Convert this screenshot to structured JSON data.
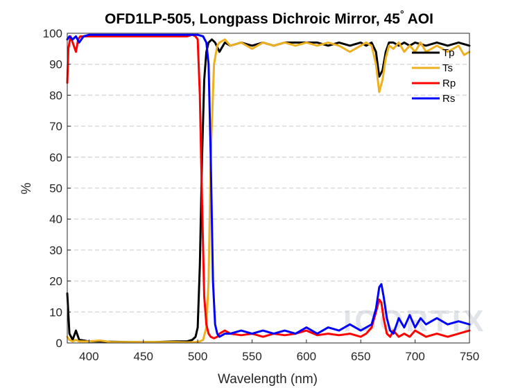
{
  "chart_data": {
    "type": "line",
    "title": "OFD1LP-505, Longpass Dichroic Mirror, 45",
    "title_superscript": "°",
    "title_suffix": " AOI",
    "xlabel": "Wavelength (nm)",
    "ylabel": "%",
    "xlim": [
      380,
      750
    ],
    "ylim": [
      0,
      100
    ],
    "xticks": [
      400,
      450,
      500,
      550,
      600,
      650,
      700,
      750
    ],
    "yticks": [
      0,
      10,
      20,
      30,
      40,
      50,
      60,
      70,
      80,
      90,
      100
    ],
    "grid": "horizontal dashed",
    "legend_position": "top-right",
    "watermark": "ICORTIX",
    "series": [
      {
        "name": "Tp",
        "color": "#000000",
        "x": [
          380,
          382,
          385,
          388,
          391,
          395,
          400,
          410,
          420,
          440,
          460,
          480,
          490,
          495,
          498,
          500,
          502,
          504,
          506,
          508,
          510,
          513,
          516,
          520,
          525,
          530,
          540,
          550,
          560,
          570,
          580,
          590,
          600,
          610,
          620,
          630,
          640,
          650,
          655,
          660,
          664,
          667,
          670,
          673,
          676,
          680,
          685,
          690,
          695,
          700,
          710,
          720,
          730,
          740,
          750
        ],
        "y": [
          16,
          3,
          1,
          4,
          1,
          0.8,
          0.5,
          0.5,
          0.4,
          0.3,
          0.3,
          0.5,
          0.5,
          1,
          2,
          5,
          25,
          60,
          85,
          94,
          97,
          98,
          97,
          94,
          97,
          96,
          97,
          96,
          97,
          96,
          97,
          97,
          97,
          97,
          96,
          97,
          96,
          97,
          96,
          97,
          94,
          86,
          88,
          94,
          97,
          97,
          96,
          97,
          96,
          97,
          96,
          97,
          96,
          97,
          96
        ]
      },
      {
        "name": "Ts",
        "color": "#edb120",
        "x": [
          380,
          382,
          385,
          388,
          391,
          395,
          400,
          410,
          420,
          440,
          460,
          480,
          490,
          498,
          502,
          505,
          508,
          510,
          512,
          515,
          518,
          520,
          525,
          530,
          540,
          550,
          560,
          570,
          580,
          590,
          600,
          610,
          620,
          630,
          640,
          650,
          655,
          660,
          664,
          667,
          670,
          673,
          676,
          680,
          685,
          690,
          695,
          700,
          705,
          710,
          720,
          730,
          740,
          745,
          750
        ],
        "y": [
          2,
          1,
          0.5,
          1,
          0.5,
          0.5,
          0.5,
          0.8,
          0.3,
          0.3,
          0.3,
          0.3,
          0.2,
          0.3,
          0.5,
          1,
          5,
          20,
          60,
          90,
          96,
          97,
          98,
          96,
          97,
          95,
          97,
          96,
          97,
          96,
          97,
          96,
          97,
          96,
          94,
          96,
          97,
          96,
          90,
          81,
          85,
          92,
          96,
          95,
          97,
          94,
          96,
          94,
          97,
          94,
          96,
          94,
          96,
          93,
          94
        ]
      },
      {
        "name": "Rp",
        "color": "#ff0000",
        "x": [
          380,
          381,
          383,
          385,
          388,
          390,
          392,
          395,
          400,
          420,
          440,
          460,
          480,
          490,
          495,
          498,
          500,
          502,
          504,
          506,
          508,
          510,
          512,
          515,
          518,
          520,
          525,
          530,
          540,
          550,
          560,
          570,
          580,
          590,
          600,
          610,
          620,
          630,
          640,
          650,
          655,
          660,
          664,
          667,
          669,
          671,
          674,
          677,
          680,
          685,
          690,
          695,
          700,
          710,
          720,
          730,
          740,
          750
        ],
        "y": [
          84,
          95,
          99,
          97,
          94,
          98,
          99,
          99,
          99,
          99,
          99,
          99,
          99,
          99,
          99.5,
          99,
          98,
          80,
          45,
          15,
          6,
          3,
          2,
          1.5,
          2,
          3,
          4,
          3,
          2.5,
          3,
          2,
          3,
          2.5,
          3,
          4,
          2.5,
          3,
          2.5,
          3,
          2,
          3,
          5,
          10,
          14,
          13,
          8,
          3,
          2,
          4,
          2,
          3,
          2,
          4,
          2,
          3,
          2,
          3,
          4
        ]
      },
      {
        "name": "Rs",
        "color": "#0000ff",
        "x": [
          380,
          382,
          385,
          388,
          391,
          395,
          400,
          420,
          440,
          460,
          480,
          490,
          500,
          505,
          508,
          510,
          512,
          514,
          516,
          518,
          520,
          525,
          530,
          540,
          550,
          560,
          570,
          580,
          590,
          600,
          610,
          620,
          630,
          640,
          650,
          655,
          660,
          664,
          667,
          669,
          671,
          674,
          677,
          680,
          685,
          690,
          695,
          700,
          705,
          710,
          720,
          730,
          740,
          750
        ],
        "y": [
          98,
          99,
          98,
          99,
          97,
          99,
          99.5,
          99.5,
          99.5,
          99.5,
          99.5,
          99.5,
          99.5,
          99,
          97,
          90,
          60,
          20,
          6,
          3,
          2,
          3,
          3,
          4,
          3,
          4,
          3,
          4,
          3,
          5,
          3,
          5,
          4,
          6,
          4,
          5,
          6,
          11,
          18,
          19,
          15,
          8,
          4,
          3,
          8,
          5,
          9,
          5,
          8,
          6,
          8,
          6,
          7,
          6
        ]
      }
    ]
  }
}
